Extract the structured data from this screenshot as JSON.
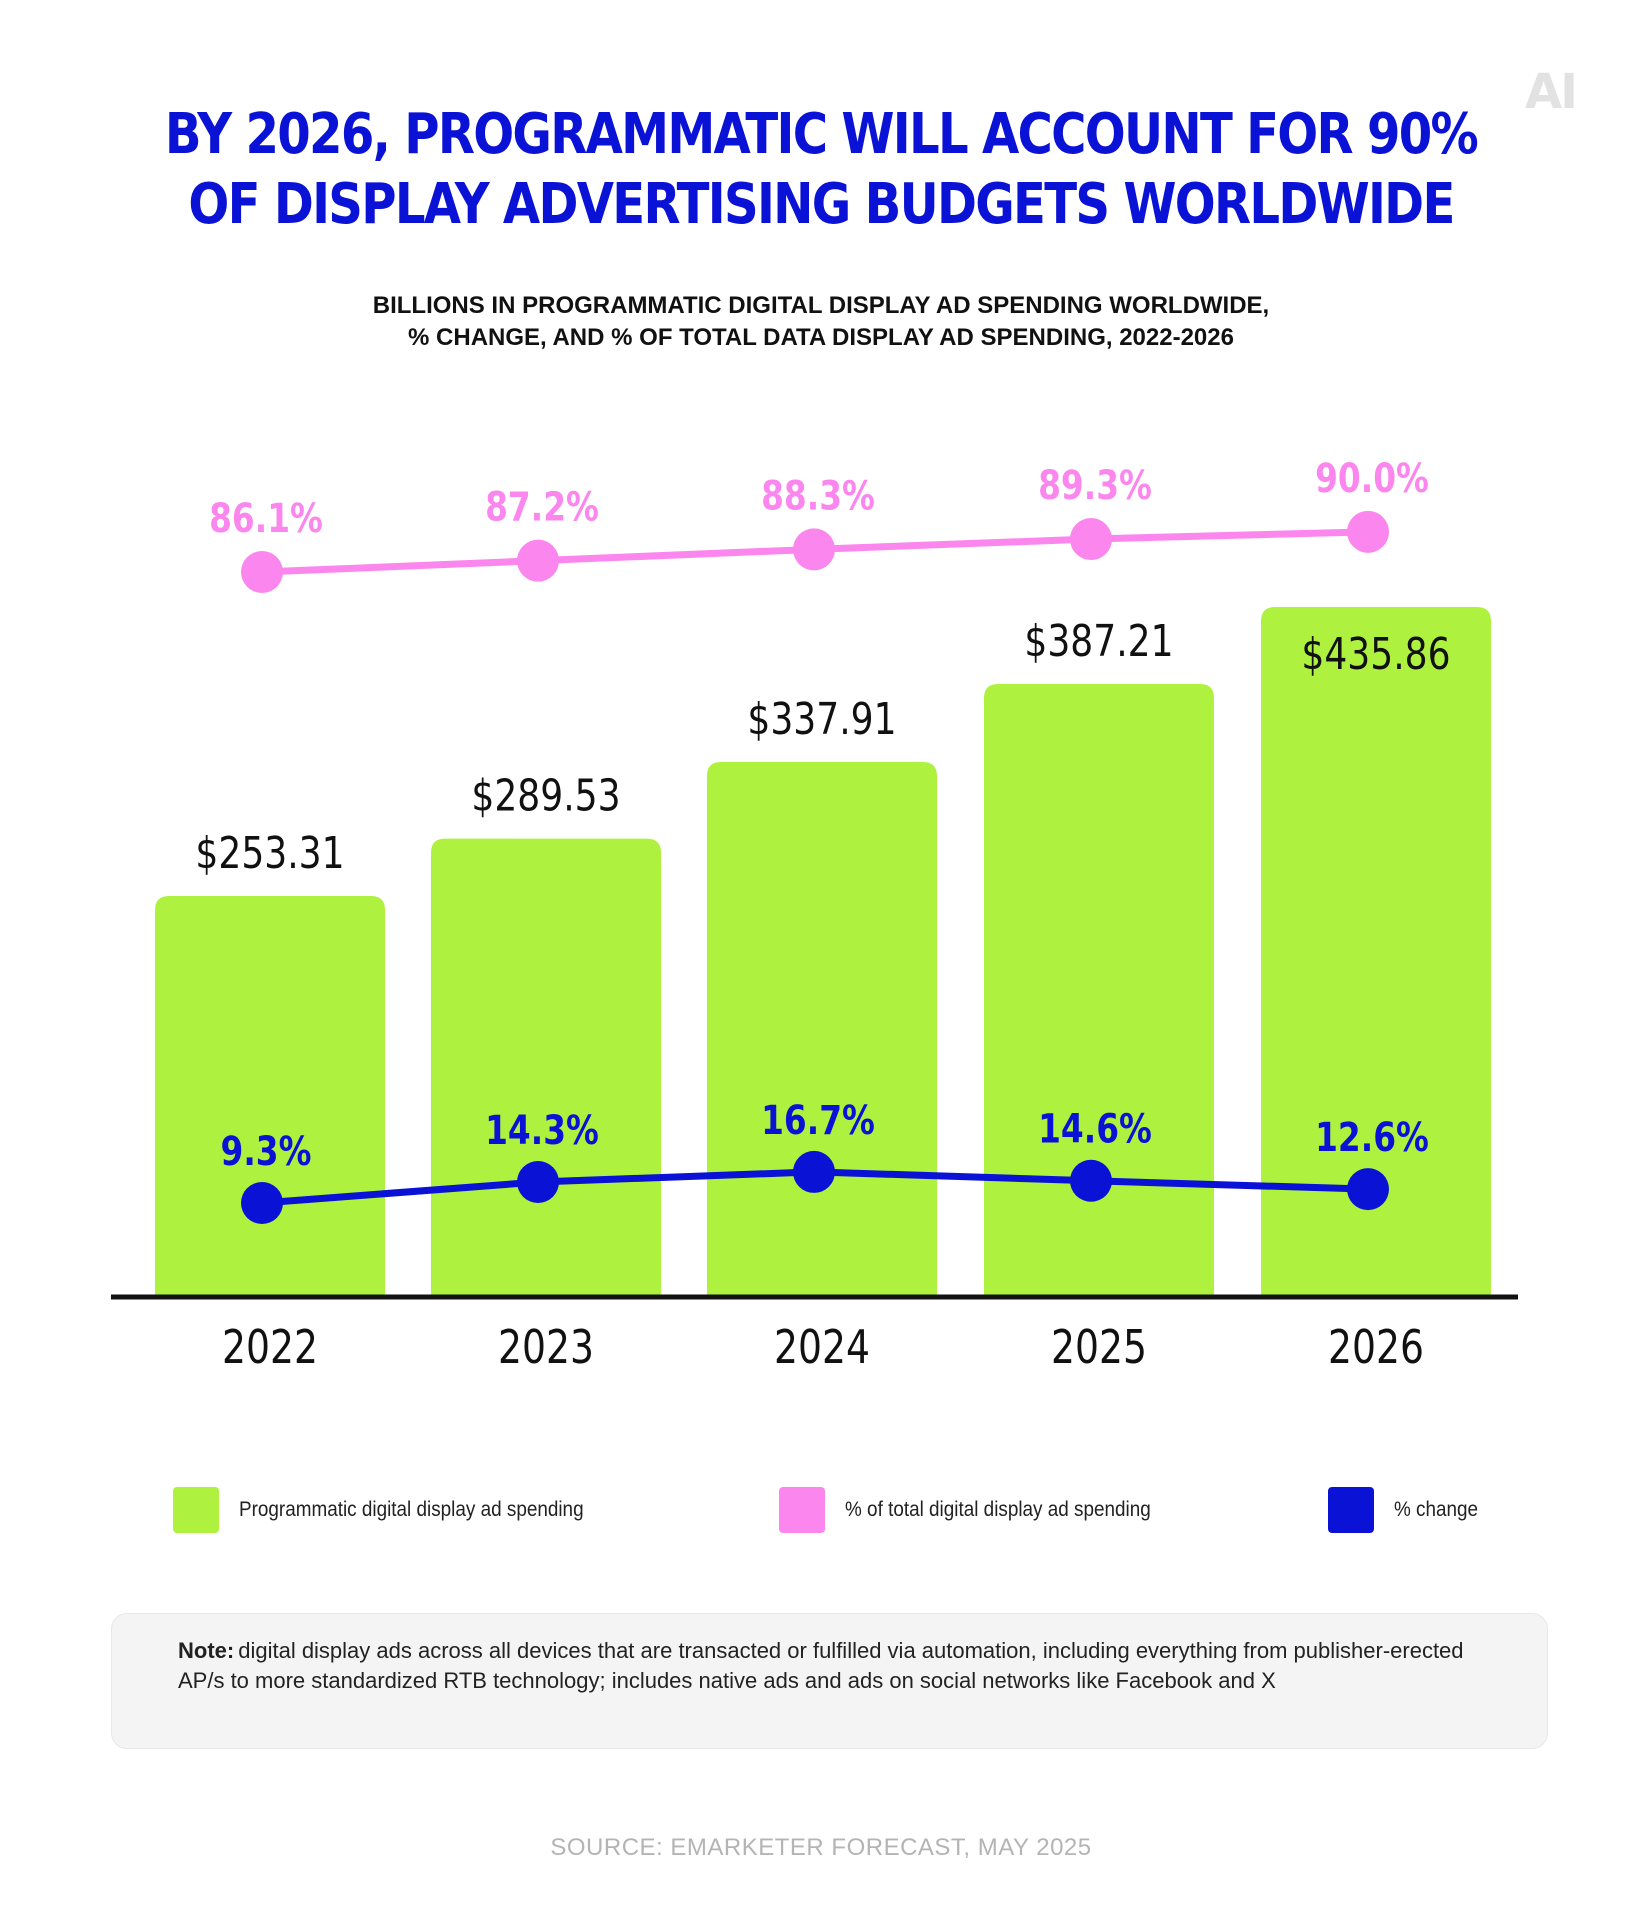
{
  "logo": "AI",
  "title": {
    "line1": "BY 2026, PROGRAMMATIC WILL ACCOUNT FOR 90%",
    "line2": "OF DISPLAY ADVERTISING BUDGETS WORLDWIDE"
  },
  "subtitle": {
    "line1": "BILLIONS IN PROGRAMMATIC  DIGITAL DISPLAY AD SPENDING WORLDWIDE,",
    "line2": "% CHANGE, AND % OF TOTAL DATA DISPLAY AD SPENDING, 2022-2026"
  },
  "colors": {
    "bar": "#aef23f",
    "share_line": "#fb86ee",
    "change_line": "#0a12d6",
    "title": "#0a12d6",
    "axis": "#111111"
  },
  "chart_data": {
    "type": "bar",
    "categories": [
      "2022",
      "2023",
      "2024",
      "2025",
      "2026"
    ],
    "series": [
      {
        "name": "Programmatic digital display ad spending",
        "type": "bar",
        "unit": "billions USD",
        "values": [
          253.31,
          289.53,
          337.91,
          387.21,
          435.86
        ],
        "labels": [
          "$253.31",
          "$289.53",
          "$337.91",
          "$387.21",
          "$435.86"
        ]
      },
      {
        "name": "% of total  digital display ad spending",
        "type": "line",
        "values": [
          86.1,
          87.2,
          88.3,
          89.3,
          90.0
        ],
        "labels": [
          "86.1%",
          "87.2%",
          "88.3%",
          "89.3%",
          "90.0%"
        ]
      },
      {
        "name": "% change",
        "type": "line",
        "values": [
          9.3,
          14.3,
          16.7,
          14.6,
          12.6
        ],
        "labels": [
          "9.3%",
          "14.3%",
          "16.7%",
          "14.6%",
          "12.6%"
        ]
      }
    ],
    "ylim": [
      0,
      450
    ],
    "grid": false,
    "legend_position": "bottom"
  },
  "legend": [
    {
      "label": "Programmatic digital display ad spending",
      "color": "#aef23f"
    },
    {
      "label": "% of total  digital display ad spending",
      "color": "#fb86ee"
    },
    {
      "label": "% change",
      "color": "#0a12d6"
    }
  ],
  "note": {
    "prefix": "Note:",
    "text": "digital display ads across all devices that are transacted or fulfilled via automation, including everything from publisher-erected AP/s to more standardized RTB technology; includes native ads and ads on social networks like Facebook and X"
  },
  "source": "SOURCE: EMARKETER FORECAST, MAY 2025"
}
